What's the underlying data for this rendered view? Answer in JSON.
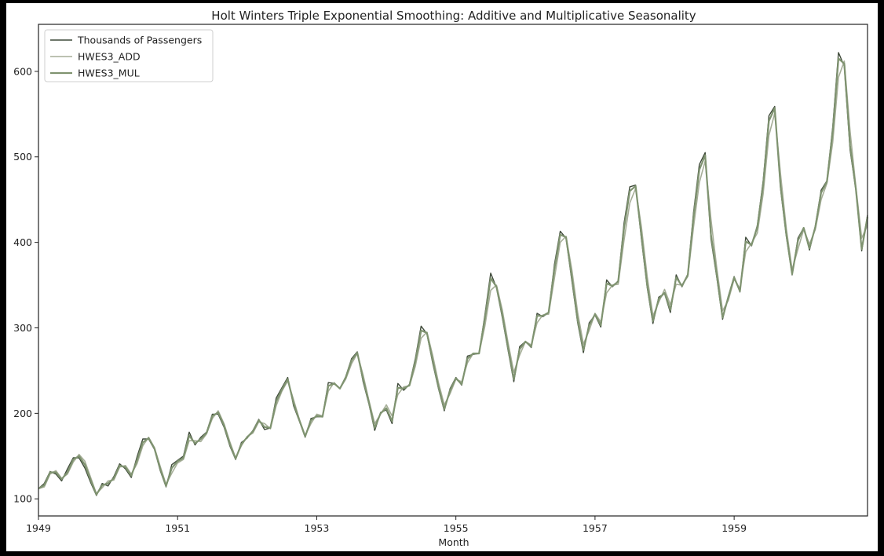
{
  "chart_data": {
    "type": "line",
    "title": "Holt Winters Triple Exponential Smoothing: Additive and Multiplicative Seasonality",
    "xlabel": "Month",
    "ylabel": "",
    "xlim": [
      1949.0,
      1960.917
    ],
    "ylim": [
      80,
      655
    ],
    "x_ticks": [
      "1949",
      "1951",
      "1953",
      "1955",
      "1957",
      "1959"
    ],
    "y_ticks": [
      "100",
      "200",
      "300",
      "400",
      "500",
      "600"
    ],
    "legend_position": "top-left",
    "grid": false,
    "x_start": "1949-01",
    "x_end": "1960-12",
    "frequency": "monthly",
    "series": [
      {
        "name": "Thousands of Passengers",
        "color": "#3f4a3a",
        "values": [
          112,
          118,
          132,
          129,
          121,
          135,
          148,
          148,
          136,
          119,
          104,
          118,
          115,
          126,
          141,
          135,
          125,
          149,
          170,
          170,
          158,
          133,
          114,
          140,
          145,
          150,
          178,
          163,
          172,
          178,
          199,
          199,
          184,
          162,
          146,
          166,
          171,
          180,
          193,
          181,
          183,
          218,
          230,
          242,
          209,
          191,
          172,
          194,
          196,
          196,
          236,
          235,
          229,
          243,
          264,
          272,
          237,
          211,
          180,
          201,
          204,
          188,
          235,
          227,
          234,
          264,
          302,
          293,
          259,
          229,
          203,
          229,
          242,
          233,
          267,
          269,
          270,
          315,
          364,
          347,
          312,
          274,
          237,
          278,
          284,
          277,
          317,
          313,
          318,
          374,
          413,
          405,
          355,
          306,
          271,
          306,
          315,
          301,
          356,
          348,
          355,
          422,
          465,
          467,
          404,
          347,
          305,
          336,
          340,
          318,
          362,
          348,
          363,
          435,
          491,
          505,
          404,
          359,
          310,
          337,
          360,
          342,
          406,
          396,
          420,
          472,
          548,
          559,
          463,
          407,
          362,
          405,
          417,
          391,
          419,
          461,
          472,
          535,
          622,
          606,
          508,
          461,
          390,
          432
        ]
      },
      {
        "name": "HWES3_ADD",
        "color": "#a6ae98",
        "values": [
          112,
          114,
          129,
          133,
          124,
          129,
          143,
          152,
          144,
          125,
          106,
          113,
          121,
          122,
          137,
          139,
          129,
          141,
          162,
          172,
          160,
          138,
          117,
          130,
          142,
          146,
          168,
          168,
          167,
          176,
          194,
          203,
          188,
          167,
          148,
          162,
          173,
          177,
          190,
          188,
          182,
          209,
          226,
          238,
          216,
          193,
          174,
          188,
          199,
          197,
          226,
          236,
          229,
          240,
          258,
          270,
          245,
          215,
          188,
          199,
          210,
          197,
          222,
          231,
          232,
          255,
          288,
          295,
          268,
          236,
          210,
          223,
          240,
          237,
          259,
          270,
          270,
          302,
          344,
          350,
          321,
          283,
          248,
          268,
          284,
          280,
          306,
          315,
          316,
          358,
          400,
          407,
          368,
          318,
          281,
          297,
          317,
          307,
          341,
          350,
          351,
          402,
          446,
          463,
          418,
          360,
          314,
          330,
          345,
          327,
          351,
          350,
          360,
          418,
          470,
          495,
          427,
          370,
          320,
          332,
          357,
          346,
          389,
          399,
          411,
          457,
          525,
          551,
          480,
          416,
          368,
          392,
          415,
          398,
          415,
          450,
          469,
          517,
          593,
          612,
          530,
          465,
          405,
          420
        ]
      },
      {
        "name": "HWES3_MUL",
        "color": "#7f9370",
        "values": [
          112,
          116,
          131,
          131,
          123,
          131,
          146,
          150,
          140,
          122,
          105,
          116,
          118,
          124,
          139,
          137,
          127,
          145,
          166,
          171,
          159,
          135,
          115,
          136,
          144,
          148,
          174,
          165,
          170,
          177,
          197,
          201,
          186,
          164,
          147,
          164,
          172,
          179,
          192,
          184,
          183,
          214,
          228,
          240,
          212,
          192,
          173,
          192,
          197,
          196,
          232,
          235,
          229,
          242,
          262,
          271,
          240,
          213,
          183,
          200,
          206,
          191,
          230,
          229,
          233,
          261,
          297,
          294,
          262,
          231,
          205,
          227,
          241,
          234,
          264,
          270,
          270,
          311,
          358,
          348,
          315,
          277,
          240,
          275,
          284,
          278,
          314,
          314,
          318,
          369,
          409,
          406,
          359,
          309,
          274,
          303,
          316,
          303,
          352,
          349,
          354,
          416,
          460,
          466,
          408,
          350,
          308,
          334,
          341,
          321,
          359,
          349,
          362,
          430,
          485,
          502,
          409,
          362,
          312,
          336,
          359,
          343,
          401,
          397,
          418,
          468,
          542,
          557,
          466,
          409,
          363,
          402,
          417,
          393,
          418,
          458,
          471,
          530,
          615,
          609,
          513,
          462,
          392,
          430
        ]
      }
    ]
  }
}
